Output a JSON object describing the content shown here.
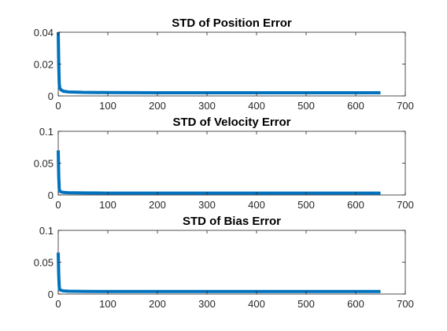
{
  "chart_data": [
    {
      "type": "line",
      "title": "STD of Position Error",
      "xlabel": "",
      "ylabel": "",
      "xlim": [
        0,
        700
      ],
      "ylim": [
        0,
        0.04
      ],
      "xticks": [
        0,
        100,
        200,
        300,
        400,
        500,
        600,
        700
      ],
      "yticks": [
        0,
        0.02,
        0.04
      ],
      "xtick_labels": [
        "0",
        "100",
        "200",
        "300",
        "400",
        "500",
        "600",
        "700"
      ],
      "ytick_labels": [
        "0",
        "0.02",
        "0.04"
      ],
      "grid": false,
      "series": [
        {
          "color": "#0072BD",
          "x": [
            0,
            1,
            2,
            3,
            5,
            10,
            20,
            50,
            100,
            200,
            300,
            400,
            500,
            600,
            650
          ],
          "y": [
            0.04,
            0.02,
            0.008,
            0.005,
            0.004,
            0.003,
            0.0025,
            0.0022,
            0.0021,
            0.002,
            0.002,
            0.002,
            0.002,
            0.002,
            0.002
          ]
        }
      ]
    },
    {
      "type": "line",
      "title": "STD of Velocity Error",
      "xlabel": "",
      "ylabel": "",
      "xlim": [
        0,
        700
      ],
      "ylim": [
        0,
        0.1
      ],
      "xticks": [
        0,
        100,
        200,
        300,
        400,
        500,
        600,
        700
      ],
      "yticks": [
        0,
        0.05,
        0.1
      ],
      "xtick_labels": [
        "0",
        "100",
        "200",
        "300",
        "400",
        "500",
        "600",
        "700"
      ],
      "ytick_labels": [
        "0",
        "0.05",
        "0.1"
      ],
      "grid": false,
      "series": [
        {
          "color": "#0072BD",
          "x": [
            0,
            1,
            2,
            3,
            5,
            10,
            20,
            50,
            100,
            200,
            300,
            400,
            500,
            600,
            650
          ],
          "y": [
            0.07,
            0.03,
            0.01,
            0.006,
            0.005,
            0.004,
            0.0035,
            0.0032,
            0.003,
            0.003,
            0.003,
            0.003,
            0.003,
            0.003,
            0.003
          ]
        }
      ]
    },
    {
      "type": "line",
      "title": "STD of Bias Error",
      "xlabel": "",
      "ylabel": "",
      "xlim": [
        0,
        700
      ],
      "ylim": [
        0,
        0.1
      ],
      "xticks": [
        0,
        100,
        200,
        300,
        400,
        500,
        600,
        700
      ],
      "yticks": [
        0,
        0.05,
        0.1
      ],
      "xtick_labels": [
        "0",
        "100",
        "200",
        "300",
        "400",
        "500",
        "600",
        "700"
      ],
      "ytick_labels": [
        "0",
        "0.05",
        "0.1"
      ],
      "grid": false,
      "series": [
        {
          "color": "#0072BD",
          "x": [
            0,
            1,
            2,
            3,
            5,
            10,
            20,
            50,
            100,
            200,
            300,
            400,
            500,
            600,
            650
          ],
          "y": [
            0.065,
            0.03,
            0.012,
            0.007,
            0.006,
            0.005,
            0.0045,
            0.0042,
            0.004,
            0.004,
            0.004,
            0.004,
            0.004,
            0.004,
            0.004
          ]
        }
      ]
    }
  ]
}
